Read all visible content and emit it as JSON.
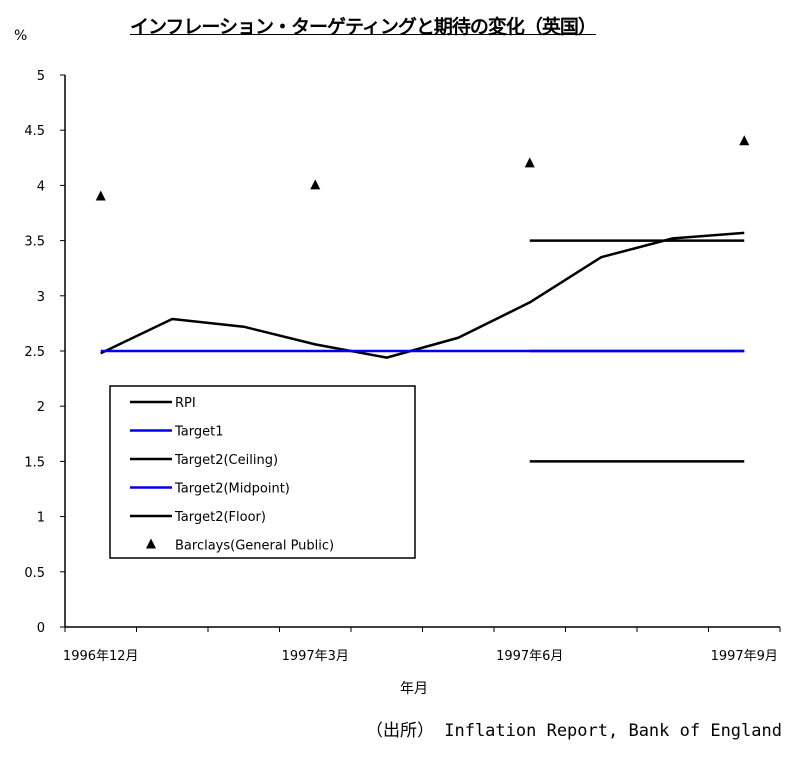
{
  "chart_data": {
    "type": "line",
    "title": "インフレーション・ターゲティングと期待の変化（英国）",
    "ylabel": "%",
    "xlabel": "年月",
    "ylim": [
      0,
      5
    ],
    "yticks": [
      "0",
      "0.5",
      "1",
      "1.5",
      "2",
      "2.5",
      "3",
      "3.5",
      "4",
      "4.5",
      "5"
    ],
    "categories": [
      "1996-12",
      "1997-01",
      "1997-02",
      "1997-03",
      "1997-04",
      "1997-05",
      "1997-06",
      "1997-07",
      "1997-08",
      "1997-09"
    ],
    "xtick_labels": [
      {
        "index": 0,
        "label": "1996年12月"
      },
      {
        "index": 3,
        "label": "1997年3月"
      },
      {
        "index": 6,
        "label": "1997年6月"
      },
      {
        "index": 9,
        "label": "1997年9月"
      }
    ],
    "grid": false,
    "legend_position": "lower-left",
    "series": [
      {
        "name": "RPI",
        "color": "#000000",
        "style": "line",
        "values": [
          2.48,
          2.79,
          2.72,
          2.56,
          2.44,
          2.62,
          2.94,
          3.35,
          3.52,
          3.57
        ]
      },
      {
        "name": "Target1",
        "color": "#0000ee",
        "style": "line",
        "values": [
          2.5,
          2.5,
          2.5,
          2.5,
          2.5,
          2.5,
          2.5,
          2.5,
          2.5,
          2.5
        ]
      },
      {
        "name": "Target2(Ceiling)",
        "color": "#000000",
        "style": "line",
        "values": [
          null,
          null,
          null,
          null,
          null,
          null,
          3.5,
          3.5,
          3.5,
          3.5
        ]
      },
      {
        "name": "Target2(Midpoint)",
        "color": "#0000ee",
        "style": "line",
        "values": [
          null,
          null,
          null,
          null,
          null,
          null,
          2.5,
          2.5,
          2.5,
          2.5
        ]
      },
      {
        "name": "Target2(Floor)",
        "color": "#000000",
        "style": "line",
        "values": [
          null,
          null,
          null,
          null,
          null,
          null,
          1.5,
          1.5,
          1.5,
          1.5
        ]
      },
      {
        "name": "Barclays(General Public)",
        "color": "#000000",
        "style": "triangle",
        "values": [
          3.9,
          null,
          null,
          4.0,
          null,
          null,
          4.2,
          null,
          null,
          4.4
        ]
      }
    ]
  },
  "source": "（出所） Inflation Report, Bank of England"
}
